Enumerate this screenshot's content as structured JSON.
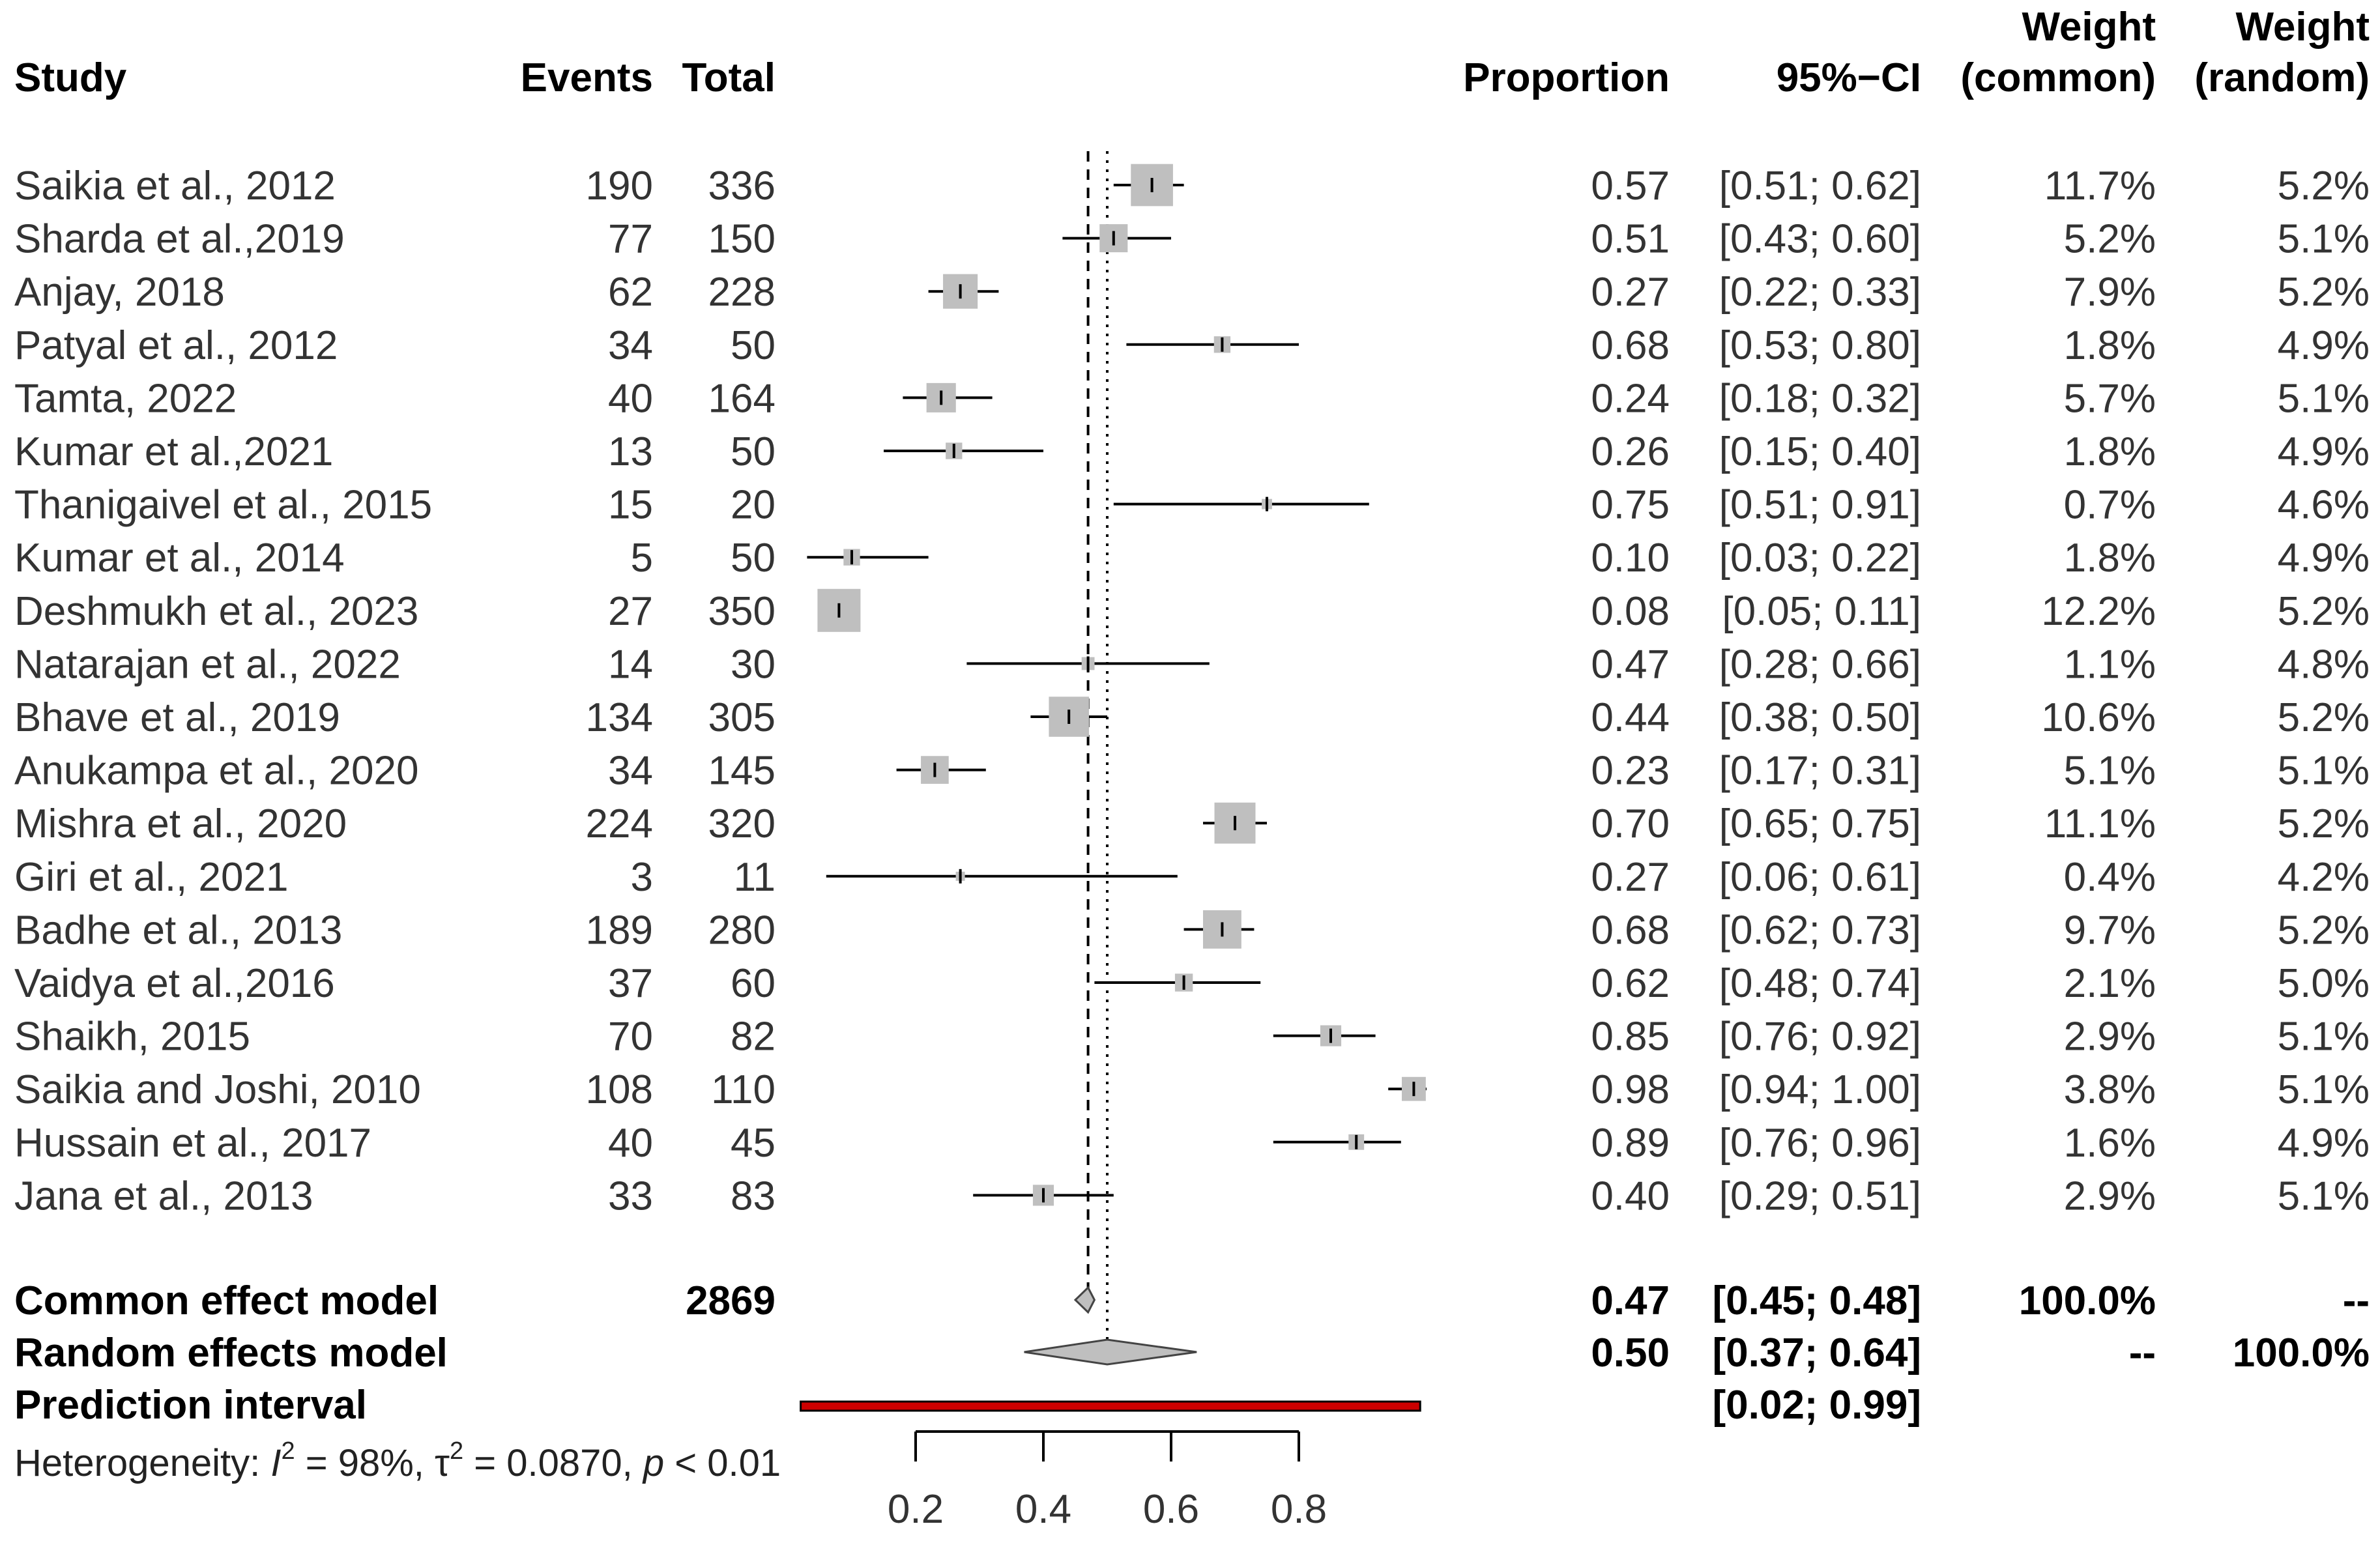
{
  "chart_data": {
    "type": "forest",
    "headers": {
      "study": "Study",
      "events": "Events",
      "total": "Total",
      "proportion": "Proportion",
      "ci": "95%−CI",
      "weight_common": [
        "Weight",
        "(common)"
      ],
      "weight_random": [
        "Weight",
        "(random)"
      ]
    },
    "studies": [
      {
        "study": "Saikia et al., 2012",
        "events": "190",
        "total": "336",
        "proportion": "0.57",
        "ci": "[0.51; 0.62]",
        "w_common": "11.7%",
        "w_random": "5.2%",
        "est": 0.57,
        "lo": 0.51,
        "hi": 0.62,
        "weight": 11.7
      },
      {
        "study": "Sharda et al.,2019",
        "events": "77",
        "total": "150",
        "proportion": "0.51",
        "ci": "[0.43; 0.60]",
        "w_common": "5.2%",
        "w_random": "5.1%",
        "est": 0.51,
        "lo": 0.43,
        "hi": 0.6,
        "weight": 5.2
      },
      {
        "study": "Anjay, 2018",
        "events": "62",
        "total": "228",
        "proportion": "0.27",
        "ci": "[0.22; 0.33]",
        "w_common": "7.9%",
        "w_random": "5.2%",
        "est": 0.27,
        "lo": 0.22,
        "hi": 0.33,
        "weight": 7.9
      },
      {
        "study": "Patyal et al., 2012",
        "events": "34",
        "total": "50",
        "proportion": "0.68",
        "ci": "[0.53; 0.80]",
        "w_common": "1.8%",
        "w_random": "4.9%",
        "est": 0.68,
        "lo": 0.53,
        "hi": 0.8,
        "weight": 1.8
      },
      {
        "study": "Tamta, 2022",
        "events": "40",
        "total": "164",
        "proportion": "0.24",
        "ci": "[0.18; 0.32]",
        "w_common": "5.7%",
        "w_random": "5.1%",
        "est": 0.24,
        "lo": 0.18,
        "hi": 0.32,
        "weight": 5.7
      },
      {
        "study": "Kumar et al.,2021",
        "events": "13",
        "total": "50",
        "proportion": "0.26",
        "ci": "[0.15; 0.40]",
        "w_common": "1.8%",
        "w_random": "4.9%",
        "est": 0.26,
        "lo": 0.15,
        "hi": 0.4,
        "weight": 1.8
      },
      {
        "study": "Thanigaivel et al., 2015",
        "events": "15",
        "total": "20",
        "proportion": "0.75",
        "ci": "[0.51; 0.91]",
        "w_common": "0.7%",
        "w_random": "4.6%",
        "est": 0.75,
        "lo": 0.51,
        "hi": 0.91,
        "weight": 0.7
      },
      {
        "study": "Kumar et al., 2014",
        "events": "5",
        "total": "50",
        "proportion": "0.10",
        "ci": "[0.03; 0.22]",
        "w_common": "1.8%",
        "w_random": "4.9%",
        "est": 0.1,
        "lo": 0.03,
        "hi": 0.22,
        "weight": 1.8
      },
      {
        "study": "Deshmukh et al., 2023",
        "events": "27",
        "total": "350",
        "proportion": "0.08",
        "ci": "[0.05; 0.11]",
        "w_common": "12.2%",
        "w_random": "5.2%",
        "est": 0.08,
        "lo": 0.05,
        "hi": 0.11,
        "weight": 12.2
      },
      {
        "study": "Natarajan et al., 2022",
        "events": "14",
        "total": "30",
        "proportion": "0.47",
        "ci": "[0.28; 0.66]",
        "w_common": "1.1%",
        "w_random": "4.8%",
        "est": 0.47,
        "lo": 0.28,
        "hi": 0.66,
        "weight": 1.1
      },
      {
        "study": "Bhave et al., 2019",
        "events": "134",
        "total": "305",
        "proportion": "0.44",
        "ci": "[0.38; 0.50]",
        "w_common": "10.6%",
        "w_random": "5.2%",
        "est": 0.44,
        "lo": 0.38,
        "hi": 0.5,
        "weight": 10.6
      },
      {
        "study": "Anukampa et al., 2020",
        "events": "34",
        "total": "145",
        "proportion": "0.23",
        "ci": "[0.17; 0.31]",
        "w_common": "5.1%",
        "w_random": "5.1%",
        "est": 0.23,
        "lo": 0.17,
        "hi": 0.31,
        "weight": 5.1
      },
      {
        "study": "Mishra et al., 2020",
        "events": "224",
        "total": "320",
        "proportion": "0.70",
        "ci": "[0.65; 0.75]",
        "w_common": "11.1%",
        "w_random": "5.2%",
        "est": 0.7,
        "lo": 0.65,
        "hi": 0.75,
        "weight": 11.1
      },
      {
        "study": "Giri et al., 2021",
        "events": "3",
        "total": "11",
        "proportion": "0.27",
        "ci": "[0.06; 0.61]",
        "w_common": "0.4%",
        "w_random": "4.2%",
        "est": 0.27,
        "lo": 0.06,
        "hi": 0.61,
        "weight": 0.4
      },
      {
        "study": "Badhe et al., 2013",
        "events": "189",
        "total": "280",
        "proportion": "0.68",
        "ci": "[0.62; 0.73]",
        "w_common": "9.7%",
        "w_random": "5.2%",
        "est": 0.68,
        "lo": 0.62,
        "hi": 0.73,
        "weight": 9.7
      },
      {
        "study": "Vaidya et al.,2016",
        "events": "37",
        "total": "60",
        "proportion": "0.62",
        "ci": "[0.48; 0.74]",
        "w_common": "2.1%",
        "w_random": "5.0%",
        "est": 0.62,
        "lo": 0.48,
        "hi": 0.74,
        "weight": 2.1
      },
      {
        "study": "Shaikh, 2015",
        "events": "70",
        "total": "82",
        "proportion": "0.85",
        "ci": "[0.76; 0.92]",
        "w_common": "2.9%",
        "w_random": "5.1%",
        "est": 0.85,
        "lo": 0.76,
        "hi": 0.92,
        "weight": 2.9
      },
      {
        "study": "Saikia and Joshi, 2010",
        "events": "108",
        "total": "110",
        "proportion": "0.98",
        "ci": "[0.94; 1.00]",
        "w_common": "3.8%",
        "w_random": "5.1%",
        "est": 0.98,
        "lo": 0.94,
        "hi": 1.0,
        "weight": 3.8
      },
      {
        "study": "Hussain et al., 2017",
        "events": "40",
        "total": "45",
        "proportion": "0.89",
        "ci": "[0.76; 0.96]",
        "w_common": "1.6%",
        "w_random": "4.9%",
        "est": 0.89,
        "lo": 0.76,
        "hi": 0.96,
        "weight": 1.6
      },
      {
        "study": "Jana et al., 2013",
        "events": "33",
        "total": "83",
        "proportion": "0.40",
        "ci": "[0.29; 0.51]",
        "w_common": "2.9%",
        "w_random": "5.1%",
        "est": 0.4,
        "lo": 0.29,
        "hi": 0.51,
        "weight": 2.9
      }
    ],
    "common_model": {
      "label": "Common effect model",
      "total": "2869",
      "proportion": "0.47",
      "ci": "[0.45; 0.48]",
      "w_common": "100.0%",
      "w_random": "--",
      "est": 0.47,
      "lo": 0.45,
      "hi": 0.48
    },
    "random_model": {
      "label": "Random effects model",
      "proportion": "0.50",
      "ci": "[0.37; 0.64]",
      "w_common": "--",
      "w_random": "100.0%",
      "est": 0.5,
      "lo": 0.37,
      "hi": 0.64
    },
    "prediction_interval": {
      "label": "Prediction interval",
      "ci": "[0.02; 0.99]",
      "lo": 0.02,
      "hi": 0.99
    },
    "heterogeneity": {
      "prefix": "Heterogeneity: ",
      "i2_symbol": "I",
      "i2_value": " = 98%, ",
      "tau_symbol": "τ",
      "tau_value": " = 0.0870, ",
      "p_symbol": "p",
      "p_value": " < 0.01"
    },
    "x_axis": {
      "ticks": [
        0.2,
        0.4,
        0.6,
        0.8
      ],
      "tick_labels": [
        "0.2",
        "0.4",
        "0.6",
        "0.8"
      ],
      "range": [
        0.2,
        0.8
      ]
    },
    "colors": {
      "box": "#bfbfbf",
      "diamond": "#bfbfbf",
      "prediction": "#cc0000",
      "line": "#000000"
    }
  }
}
